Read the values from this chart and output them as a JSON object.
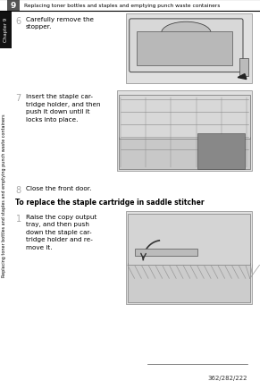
{
  "page_bg": "#ffffff",
  "header_title": "Replacing toner bottles and staples and emptying punch waste containers",
  "header_number": "9",
  "chapter_tab_text": "Chapter 9",
  "side_text": "Replacing toner bottles and staples and emptying punch waste containers",
  "footer_text": "362/282/222",
  "step6_num": "6",
  "step6_text": "Carefully remove the\nstopper.",
  "step7_num": "7",
  "step7_text": "Insert the staple car-\ntridge holder, and then\npush it down until it\nlocks into place.",
  "step8_num": "8",
  "step8_text": "Close the front door.",
  "section_title": "To replace the staple cartridge in saddle stitcher",
  "sub1_num": "1",
  "sub1_text": "Raise the copy output\ntray, and then push\ndown the staple car-\ntridge holder and re-\nmove it."
}
